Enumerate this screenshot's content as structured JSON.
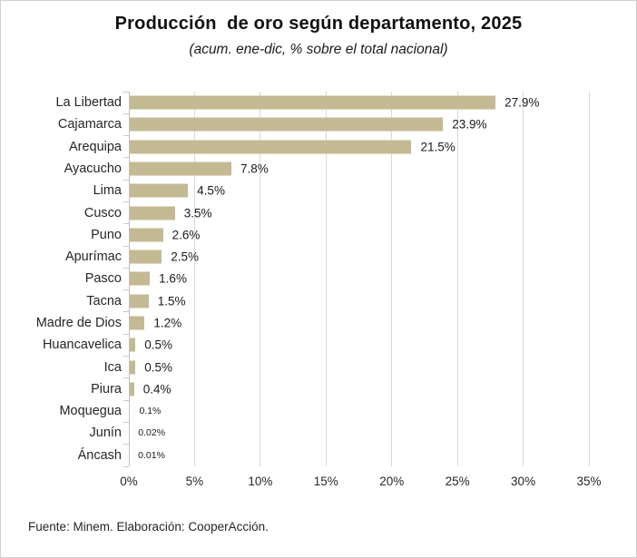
{
  "chart_data": {
    "type": "bar",
    "orientation": "horizontal",
    "title": "Producción  de oro según departamento, 2025",
    "subtitle": "(acum. ene-dic, % sobre el total nacional)",
    "categories": [
      "La Libertad",
      "Cajamarca",
      "Arequipa",
      "Ayacucho",
      "Lima",
      "Cusco",
      "Puno",
      "Apurímac",
      "Pasco",
      "Tacna",
      "Madre de Dios",
      "Huancavelica",
      "Ica",
      "Piura",
      "Moquegua",
      "Junín",
      "Áncash"
    ],
    "values": [
      27.9,
      23.9,
      21.5,
      7.8,
      4.5,
      3.5,
      2.6,
      2.5,
      1.6,
      1.5,
      1.2,
      0.5,
      0.5,
      0.4,
      0.1,
      0.02,
      0.01
    ],
    "value_labels": [
      "27.9%",
      "23.9%",
      "21.5%",
      "7.8%",
      "4.5%",
      "3.5%",
      "2.6%",
      "2.5%",
      "1.6%",
      "1.5%",
      "1.2%",
      "0.5%",
      "0.5%",
      "0.4%",
      "0.1%",
      "0.02%",
      "0.01%"
    ],
    "xlabel": "",
    "ylabel": "",
    "xlim": [
      0,
      35
    ],
    "x_ticks": [
      "0%",
      "5%",
      "10%",
      "15%",
      "20%",
      "25%",
      "30%",
      "35%"
    ],
    "grid": "vertical",
    "legend": "none",
    "colors": {
      "bar": "#C3BA93",
      "gridline": "#D9D9D9",
      "axis_line": "#BFBFBF",
      "tick": "#C9C9C9"
    }
  },
  "footer": {
    "source": "Fuente: Minem. Elaboración: CooperAcción."
  }
}
